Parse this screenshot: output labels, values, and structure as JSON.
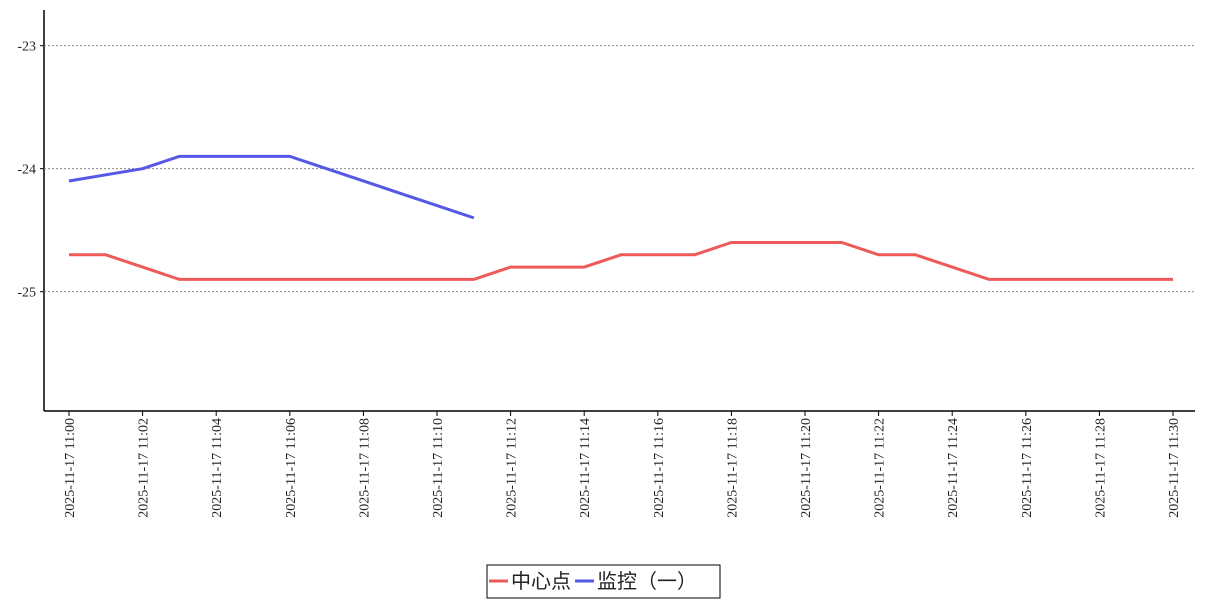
{
  "chart_data": {
    "type": "line",
    "categories": [
      "2025-11-17 11:00",
      null,
      "2025-11-17 11:02",
      null,
      "2025-11-17 11:04",
      null,
      "2025-11-17 11:06",
      null,
      "2025-11-17 11:08",
      null,
      "2025-11-17 11:10",
      null,
      "2025-11-17 11:12",
      null,
      "2025-11-17 11:14",
      null,
      "2025-11-17 11:16",
      null,
      "2025-11-17 11:18",
      null,
      "2025-11-17 11:20",
      null,
      "2025-11-17 11:22",
      null,
      "2025-11-17 11:24",
      null,
      "2025-11-17 11:26",
      null,
      "2025-11-17 11:28",
      null,
      "2025-11-17 11:30"
    ],
    "series": [
      {
        "name": "中心点",
        "color": "#ee5a5a",
        "values": [
          -24.7,
          -24.7,
          -24.8,
          -24.9,
          -24.9,
          -24.9,
          -24.9,
          -24.9,
          -24.9,
          -24.9,
          -24.9,
          -24.9,
          -24.8,
          -24.8,
          -24.8,
          -24.7,
          -24.7,
          -24.7,
          -24.6,
          -24.6,
          -24.6,
          -24.6,
          -24.7,
          -24.7,
          -24.8,
          -24.9,
          -24.9,
          -24.9,
          -24.9,
          -24.9,
          -24.9
        ]
      },
      {
        "name": "监控（一）",
        "color": "#5558e6",
        "values": [
          -24.1,
          -24.05,
          -24.0,
          -23.9,
          -23.9,
          -23.9,
          -23.9,
          -24.0,
          -24.1,
          -24.2,
          -24.3,
          -24.4,
          null,
          null,
          null,
          null,
          null,
          null,
          null,
          null,
          null,
          null,
          null,
          null,
          null,
          null,
          null,
          null,
          null,
          null,
          null
        ]
      }
    ],
    "ylim": [
      -25.97,
      -22.71
    ],
    "yticks": [
      -25,
      -24,
      -23
    ],
    "grid": true,
    "legend": "bottom"
  }
}
